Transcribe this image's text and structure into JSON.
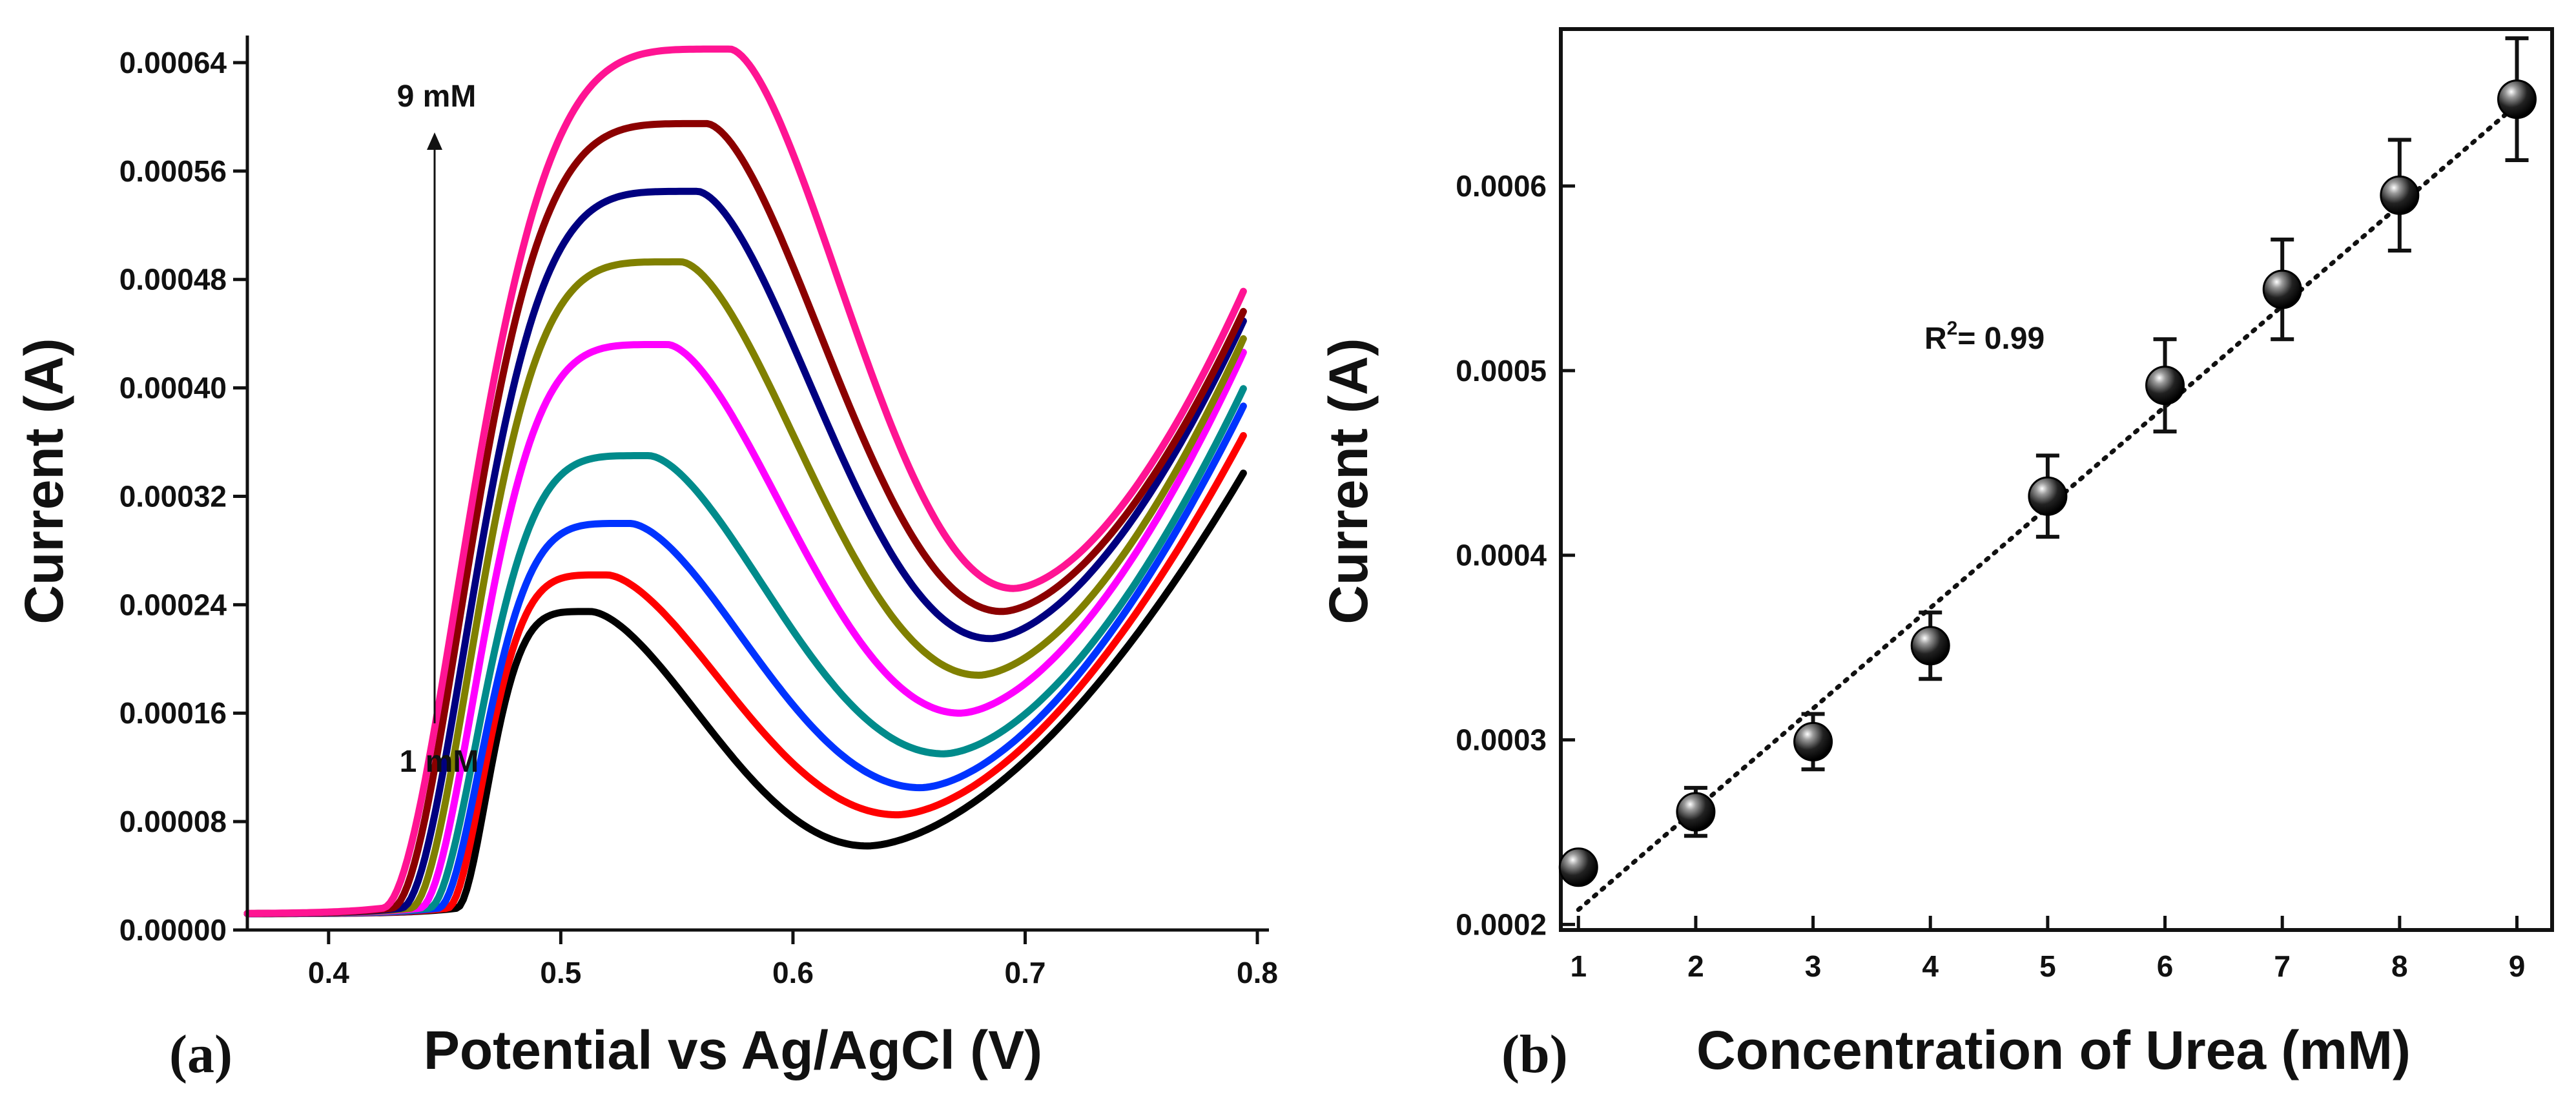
{
  "figure": {
    "panel_a_label": "(a)",
    "panel_b_label": "(b)"
  },
  "chart_data": [
    {
      "type": "line",
      "panel": "(a)",
      "xlabel": "Potential vs Ag/AgCl (V)",
      "ylabel": "Current (A)",
      "xlim": [
        0.365,
        0.805
      ],
      "ylim": [
        0,
        0.00066
      ],
      "x_ticks": [
        0.4,
        0.5,
        0.6,
        0.7,
        0.8
      ],
      "x_tick_labels": [
        "0.4",
        "0.5",
        "0.6",
        "0.7",
        "0.8"
      ],
      "y_ticks": [
        0,
        8e-05,
        0.00016,
        0.00024,
        0.00032,
        0.0004,
        0.00048,
        0.00056,
        0.00064
      ],
      "y_tick_labels": [
        "0.00000",
        "0.00008",
        "0.00016",
        "0.00024",
        "0.00032",
        "0.00040",
        "0.00048",
        "0.00056",
        "0.00064"
      ],
      "grid": false,
      "legend": "none",
      "annotations": {
        "arrow_top": "9 mM",
        "arrow_bottom": "1 mM"
      },
      "baseline": 1.2e-05,
      "series": [
        {
          "color": "#000000",
          "peak_x": 0.513,
          "peak_y": 0.000235,
          "valley_x": 0.632,
          "valley_y": 6.2e-05,
          "end_y": 0.00034
        },
        {
          "color": "#ff0000",
          "peak_x": 0.52,
          "peak_y": 0.000262,
          "valley_x": 0.645,
          "valley_y": 8.5e-05,
          "end_y": 0.000368
        },
        {
          "color": "#0033ff",
          "peak_x": 0.53,
          "peak_y": 0.0003,
          "valley_x": 0.655,
          "valley_y": 0.000105,
          "end_y": 0.00039
        },
        {
          "color": "#008b8b",
          "peak_x": 0.538,
          "peak_y": 0.00035,
          "valley_x": 0.665,
          "valley_y": 0.00013,
          "end_y": 0.000403
        },
        {
          "color": "#ff00ff",
          "peak_x": 0.546,
          "peak_y": 0.000432,
          "valley_x": 0.672,
          "valley_y": 0.00016,
          "end_y": 0.00043
        },
        {
          "color": "#808000",
          "peak_x": 0.552,
          "peak_y": 0.000493,
          "valley_x": 0.68,
          "valley_y": 0.000188,
          "end_y": 0.00044
        },
        {
          "color": "#000080",
          "peak_x": 0.559,
          "peak_y": 0.000545,
          "valley_x": 0.685,
          "valley_y": 0.000215,
          "end_y": 0.000453
        },
        {
          "color": "#8b0000",
          "peak_x": 0.563,
          "peak_y": 0.000595,
          "valley_x": 0.69,
          "valley_y": 0.000235,
          "end_y": 0.00046
        },
        {
          "color": "#ff1493",
          "peak_x": 0.573,
          "peak_y": 0.00065,
          "valley_x": 0.695,
          "valley_y": 0.000252,
          "end_y": 0.000475
        }
      ]
    },
    {
      "type": "scatter",
      "panel": "(b)",
      "xlabel": "Concentration of Urea (mM)",
      "ylabel": "Current (A)",
      "xlim": [
        0.85,
        9.3
      ],
      "ylim": [
        0.000197,
        0.000685
      ],
      "x_ticks": [
        1,
        2,
        3,
        4,
        5,
        6,
        7,
        8,
        9
      ],
      "x_tick_labels": [
        "1",
        "2",
        "3",
        "4",
        "5",
        "6",
        "7",
        "8",
        "9"
      ],
      "y_ticks": [
        0.0002,
        0.0003,
        0.0004,
        0.0005,
        0.0006
      ],
      "y_tick_labels": [
        "0.0002",
        "0.0003",
        "0.0004",
        "0.0005",
        "0.0006"
      ],
      "grid": false,
      "legend": "none",
      "x": [
        1,
        2,
        3,
        4,
        5,
        6,
        7,
        8,
        9
      ],
      "y": [
        0.000231,
        0.000261,
        0.000299,
        0.000351,
        0.000432,
        0.000492,
        0.000544,
        0.000595,
        0.000647
      ],
      "error": [
        5e-06,
        1.3e-05,
        1.5e-05,
        1.8e-05,
        2.2e-05,
        2.5e-05,
        2.7e-05,
        3e-05,
        3.3e-05
      ],
      "fit": {
        "slope": 5.45e-05,
        "intercept": 0.0001535
      },
      "fit_style": "dotted",
      "r2_prefix": "R",
      "r2_sup": "2",
      "r2_value": "= 0.99",
      "marker_color": "#000000"
    }
  ]
}
